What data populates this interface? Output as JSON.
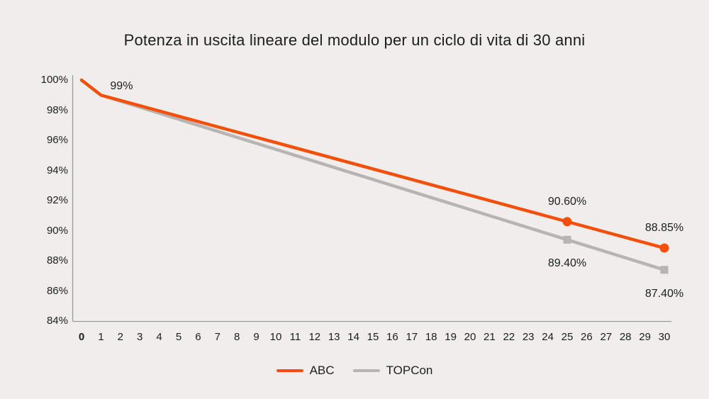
{
  "chart_data": {
    "type": "line",
    "title": "Potenza in uscita lineare del modulo per un ciclo di vita di 30 anni",
    "xlabel": "",
    "ylabel": "",
    "xlim": [
      0,
      30
    ],
    "ylim": [
      84,
      100
    ],
    "grid": false,
    "legend_position": "bottom-center",
    "x_tick_labels": [
      "0",
      "1",
      "2",
      "3",
      "4",
      "5",
      "6",
      "7",
      "8",
      "9",
      "10",
      "11",
      "12",
      "13",
      "14",
      "15",
      "16",
      "17",
      "18",
      "19",
      "20",
      "21",
      "22",
      "23",
      "24",
      "25",
      "26",
      "27",
      "28",
      "29",
      "30"
    ],
    "y_ticks": [
      {
        "value": 100,
        "label": "100%"
      },
      {
        "value": 98,
        "label": "98%"
      },
      {
        "value": 96,
        "label": "96%"
      },
      {
        "value": 94,
        "label": "94%"
      },
      {
        "value": 92,
        "label": "92%"
      },
      {
        "value": 90,
        "label": "90%"
      },
      {
        "value": 88,
        "label": "88%"
      },
      {
        "value": 86,
        "label": "86%"
      },
      {
        "value": 84,
        "label": "84%"
      }
    ],
    "series": [
      {
        "name": "ABC",
        "color": "#F4500C",
        "marker": "circle",
        "points": [
          [
            0,
            100
          ],
          [
            1,
            99
          ],
          [
            25,
            90.6
          ],
          [
            30,
            88.85
          ]
        ],
        "marker_points": [
          [
            25,
            90.6
          ],
          [
            30,
            88.85
          ]
        ]
      },
      {
        "name": "TOPCon",
        "color": "#B7B4B1",
        "marker": "square",
        "points": [
          [
            0,
            100
          ],
          [
            1,
            99
          ],
          [
            25,
            89.4
          ],
          [
            30,
            87.4
          ]
        ],
        "marker_points": [
          [
            25,
            89.4
          ],
          [
            30,
            87.4
          ]
        ]
      }
    ],
    "annotations": [
      {
        "series": "ABC",
        "x": 1,
        "y": 99,
        "label": "99%",
        "placement": "above-right"
      },
      {
        "series": "ABC",
        "x": 25,
        "y": 90.6,
        "label": "90.60%",
        "placement": "above"
      },
      {
        "series": "TOPCon",
        "x": 25,
        "y": 89.4,
        "label": "89.40%",
        "placement": "below"
      },
      {
        "series": "ABC",
        "x": 30,
        "y": 88.85,
        "label": "88.85%",
        "placement": "above"
      },
      {
        "series": "TOPCon",
        "x": 30,
        "y": 87.4,
        "label": "87.40%",
        "placement": "below"
      }
    ]
  },
  "colors": {
    "background": "#EFEEEC",
    "axis": "#9B9B98",
    "text": "#1D1D1B",
    "abc_orange": "#F4500C",
    "topcon_gray": "#B7B4B1"
  }
}
